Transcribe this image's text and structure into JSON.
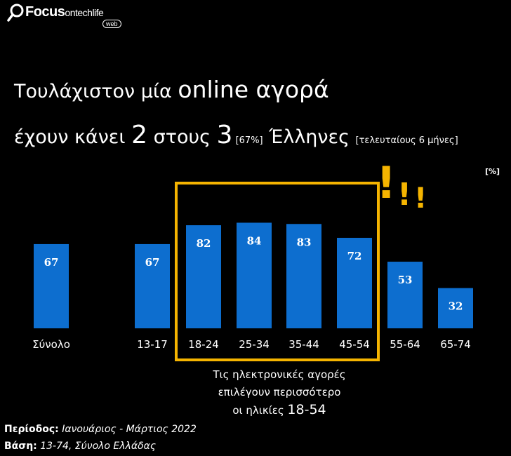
{
  "logo": {
    "brand": "Focus",
    "brand_suffix": "ontechlife",
    "tag": "web"
  },
  "title": {
    "line1_a": "Τουλάχιστον μία ",
    "line1_b": "online αγορά",
    "line2_a": "έχουν κάνει ",
    "line2_b": "2",
    "line2_c": " στους ",
    "line2_d": "3",
    "line2_e": " [67%]",
    "line2_f": " Έλληνες ",
    "line2_g": "[τελευταίους 6 μήνες]"
  },
  "unit_label": "[%]",
  "note": {
    "line1": "Τις ηλεκτρονικές αγορές",
    "line2": "επιλέγουν περισσότερο",
    "line3_a": "οι ηλικίες ",
    "line3_b": "18-54"
  },
  "exclamation": "!!!",
  "footer": {
    "period_label": "Περίοδος:",
    "period_value": " Ιανουάριος - Μάρτιος 2022",
    "base_label": "Βάση:",
    "base_value": " 13-74, Σύνολο Ελλάδας"
  },
  "colors": {
    "bar": "#0d6ecf",
    "highlight": "#f5b400",
    "background": "#000000",
    "text": "#ffffff"
  },
  "chart_data": {
    "type": "bar",
    "categories": [
      "Σύνολο",
      "13-17",
      "18-24",
      "25-34",
      "35-44",
      "45-54",
      "55-64",
      "65-74"
    ],
    "values": [
      67,
      67,
      82,
      84,
      83,
      72,
      53,
      32
    ],
    "ylabel": "[%]",
    "ylim": [
      0,
      100
    ],
    "grid": false,
    "legend": "none",
    "highlighted_categories": [
      "18-24",
      "25-34",
      "35-44",
      "45-54"
    ]
  }
}
